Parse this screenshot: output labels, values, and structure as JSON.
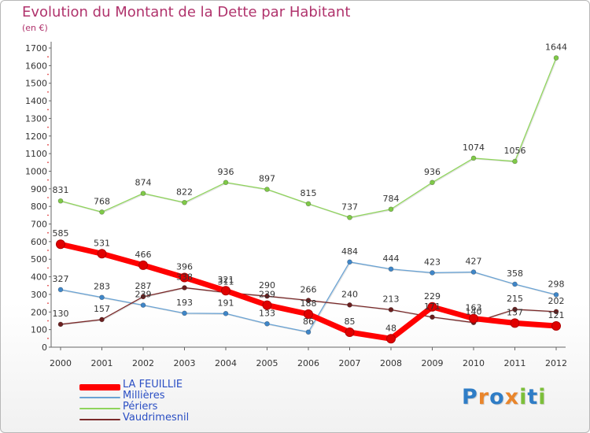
{
  "colors": {
    "title": "#b0336c",
    "axis": "#666666",
    "grid": "#dddddd",
    "legend_text": "#2b4fc4"
  },
  "logo": {
    "text": "Proxiti",
    "letters": [
      {
        "ch": "P",
        "color": "#2f7dc6"
      },
      {
        "ch": "r",
        "color": "#e9852b"
      },
      {
        "ch": "o",
        "color": "#2f7dc6"
      },
      {
        "ch": "x",
        "color": "#e9852b"
      },
      {
        "ch": "i",
        "color": "#7cbf3a"
      },
      {
        "ch": "t",
        "color": "#2f7dc6"
      },
      {
        "ch": "i",
        "color": "#7cbf3a"
      }
    ]
  },
  "chart_data": {
    "type": "line",
    "title": "Evolution du Montant de la Dette par Habitant",
    "unit": "(en €)",
    "x": [
      "2000",
      "2001",
      "2002",
      "2003",
      "2004",
      "2005",
      "2006",
      "2007",
      "2008",
      "2009",
      "2010",
      "2011",
      "2012"
    ],
    "ylim": [
      0,
      1700
    ],
    "yticks": [
      0,
      100,
      200,
      300,
      400,
      500,
      600,
      700,
      800,
      900,
      1000,
      1100,
      1200,
      1300,
      1400,
      1500,
      1600,
      1700
    ],
    "grid": false,
    "legend_position": "bottom-left",
    "series": [
      {
        "name": "Périers",
        "color": "#94d75e",
        "stroke": "#8fd45c",
        "point": "#7fc948",
        "weight": "thin",
        "values": [
          831,
          768,
          874,
          822,
          936,
          897,
          815,
          737,
          784,
          936,
          1074,
          1056,
          1644
        ]
      },
      {
        "name": "Millières",
        "color": "#5b9bd5",
        "stroke": "#6aa3d4",
        "point": "#3f86c8",
        "weight": "thin",
        "values": [
          327,
          283,
          239,
          193,
          191,
          133,
          86,
          484,
          444,
          423,
          427,
          358,
          298
        ]
      },
      {
        "name": "Vaudrimesnil",
        "color": "#7a2a2a",
        "stroke": "#7a2a2a",
        "point": "#6a1f1f",
        "weight": "thin",
        "values": [
          130,
          157,
          287,
          338,
          311,
          290,
          266,
          240,
          213,
          171,
          140,
          215,
          202
        ]
      },
      {
        "name": "LA FEUILLIE",
        "color": "#ff0000",
        "stroke": "#ff0000",
        "point": "#e00000",
        "weight": "thick",
        "values": [
          585,
          531,
          466,
          396,
          321,
          239,
          188,
          85,
          48,
          229,
          163,
          137,
          121
        ]
      }
    ],
    "legend_order": [
      "LA FEUILLIE",
      "Millières",
      "Périers",
      "Vaudrimesnil"
    ]
  }
}
